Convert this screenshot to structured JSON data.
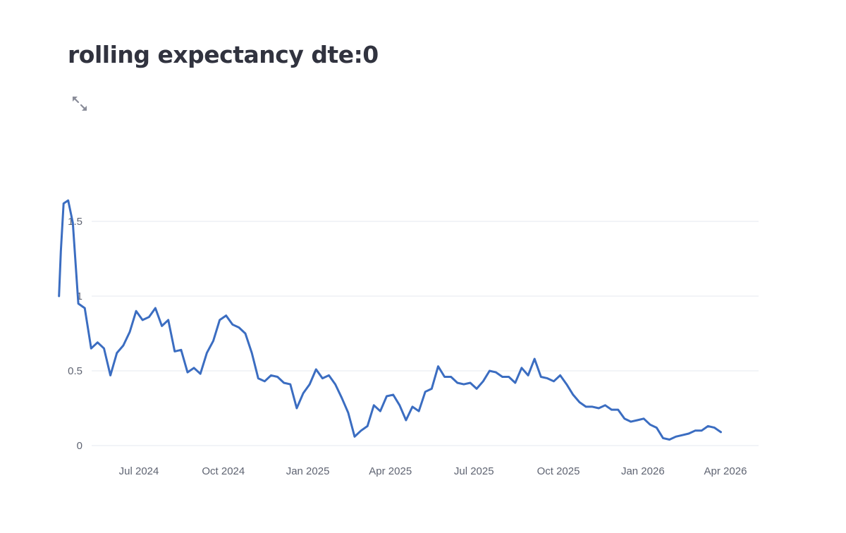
{
  "page": {
    "title": "rolling expectancy dte:0"
  },
  "toolbar": {
    "fullscreen_icon": "fullscreen-expand-icon"
  },
  "colors": {
    "line": "#3b6dc1",
    "grid": "#e6e9ef",
    "tick_text": "#5f6472",
    "title_text": "#31333f",
    "icon": "#8a8d99"
  },
  "chart_data": {
    "type": "line",
    "title": "rolling expectancy dte:0",
    "xlabel": "",
    "ylabel": "",
    "ylim": [
      0,
      1.5
    ],
    "grid": true,
    "legend": "none",
    "y_ticks": [
      {
        "value": 0,
        "label": "0"
      },
      {
        "value": 0.5,
        "label": "0.5"
      },
      {
        "value": 1,
        "label": "1"
      },
      {
        "value": 1.5,
        "label": "1.5"
      }
    ],
    "x_ticks": [
      {
        "date": "2024-07-01",
        "label": "Jul 2024"
      },
      {
        "date": "2024-10-01",
        "label": "Oct 2024"
      },
      {
        "date": "2025-01-01",
        "label": "Jan 2025"
      },
      {
        "date": "2025-04-01",
        "label": "Apr 2025"
      },
      {
        "date": "2025-07-01",
        "label": "Jul 2025"
      },
      {
        "date": "2025-10-01",
        "label": "Oct 2025"
      },
      {
        "date": "2026-01-01",
        "label": "Jan 2026"
      },
      {
        "date": "2026-04-01",
        "label": "Apr 2026"
      }
    ],
    "series": [
      {
        "points": [
          [
            "2024-04-05",
            1.0
          ],
          [
            "2024-04-07",
            1.3
          ],
          [
            "2024-04-10",
            1.62
          ],
          [
            "2024-04-15",
            1.64
          ],
          [
            "2024-04-20",
            1.49
          ],
          [
            "2024-04-26",
            0.95
          ],
          [
            "2024-05-03",
            0.92
          ],
          [
            "2024-05-10",
            0.65
          ],
          [
            "2024-05-17",
            0.69
          ],
          [
            "2024-05-24",
            0.65
          ],
          [
            "2024-05-31",
            0.47
          ],
          [
            "2024-06-07",
            0.62
          ],
          [
            "2024-06-14",
            0.67
          ],
          [
            "2024-06-21",
            0.76
          ],
          [
            "2024-06-28",
            0.9
          ],
          [
            "2024-07-05",
            0.84
          ],
          [
            "2024-07-12",
            0.86
          ],
          [
            "2024-07-19",
            0.92
          ],
          [
            "2024-07-26",
            0.8
          ],
          [
            "2024-08-02",
            0.84
          ],
          [
            "2024-08-09",
            0.63
          ],
          [
            "2024-08-16",
            0.64
          ],
          [
            "2024-08-23",
            0.49
          ],
          [
            "2024-08-30",
            0.52
          ],
          [
            "2024-09-06",
            0.48
          ],
          [
            "2024-09-13",
            0.62
          ],
          [
            "2024-09-20",
            0.7
          ],
          [
            "2024-09-27",
            0.84
          ],
          [
            "2024-10-04",
            0.87
          ],
          [
            "2024-10-11",
            0.81
          ],
          [
            "2024-10-18",
            0.79
          ],
          [
            "2024-10-25",
            0.75
          ],
          [
            "2024-11-01",
            0.62
          ],
          [
            "2024-11-08",
            0.45
          ],
          [
            "2024-11-15",
            0.43
          ],
          [
            "2024-11-22",
            0.47
          ],
          [
            "2024-11-29",
            0.46
          ],
          [
            "2024-12-06",
            0.42
          ],
          [
            "2024-12-13",
            0.41
          ],
          [
            "2024-12-20",
            0.25
          ],
          [
            "2024-12-27",
            0.35
          ],
          [
            "2025-01-03",
            0.41
          ],
          [
            "2025-01-10",
            0.51
          ],
          [
            "2025-01-17",
            0.45
          ],
          [
            "2025-01-24",
            0.47
          ],
          [
            "2025-01-31",
            0.41
          ],
          [
            "2025-02-07",
            0.32
          ],
          [
            "2025-02-14",
            0.22
          ],
          [
            "2025-02-21",
            0.06
          ],
          [
            "2025-02-28",
            0.1
          ],
          [
            "2025-03-07",
            0.13
          ],
          [
            "2025-03-14",
            0.27
          ],
          [
            "2025-03-21",
            0.23
          ],
          [
            "2025-03-28",
            0.33
          ],
          [
            "2025-04-04",
            0.34
          ],
          [
            "2025-04-11",
            0.27
          ],
          [
            "2025-04-18",
            0.17
          ],
          [
            "2025-04-25",
            0.26
          ],
          [
            "2025-05-02",
            0.23
          ],
          [
            "2025-05-09",
            0.36
          ],
          [
            "2025-05-16",
            0.38
          ],
          [
            "2025-05-23",
            0.53
          ],
          [
            "2025-05-30",
            0.46
          ],
          [
            "2025-06-06",
            0.46
          ],
          [
            "2025-06-13",
            0.42
          ],
          [
            "2025-06-20",
            0.41
          ],
          [
            "2025-06-27",
            0.42
          ],
          [
            "2025-07-04",
            0.38
          ],
          [
            "2025-07-11",
            0.43
          ],
          [
            "2025-07-18",
            0.5
          ],
          [
            "2025-07-25",
            0.49
          ],
          [
            "2025-08-01",
            0.46
          ],
          [
            "2025-08-08",
            0.46
          ],
          [
            "2025-08-15",
            0.42
          ],
          [
            "2025-08-22",
            0.52
          ],
          [
            "2025-08-29",
            0.47
          ],
          [
            "2025-09-05",
            0.58
          ],
          [
            "2025-09-12",
            0.46
          ],
          [
            "2025-09-19",
            0.45
          ],
          [
            "2025-09-26",
            0.43
          ],
          [
            "2025-10-03",
            0.47
          ],
          [
            "2025-10-10",
            0.41
          ],
          [
            "2025-10-17",
            0.34
          ],
          [
            "2025-10-24",
            0.29
          ],
          [
            "2025-10-31",
            0.26
          ],
          [
            "2025-11-07",
            0.26
          ],
          [
            "2025-11-14",
            0.25
          ],
          [
            "2025-11-21",
            0.27
          ],
          [
            "2025-11-28",
            0.24
          ],
          [
            "2025-12-05",
            0.24
          ],
          [
            "2025-12-12",
            0.18
          ],
          [
            "2025-12-19",
            0.16
          ],
          [
            "2025-12-26",
            0.17
          ],
          [
            "2026-01-02",
            0.18
          ],
          [
            "2026-01-09",
            0.14
          ],
          [
            "2026-01-16",
            0.12
          ],
          [
            "2026-01-23",
            0.05
          ],
          [
            "2026-01-30",
            0.04
          ],
          [
            "2026-02-06",
            0.06
          ],
          [
            "2026-02-13",
            0.07
          ],
          [
            "2026-02-20",
            0.08
          ],
          [
            "2026-02-27",
            0.1
          ],
          [
            "2026-03-06",
            0.1
          ],
          [
            "2026-03-13",
            0.13
          ],
          [
            "2026-03-20",
            0.12
          ],
          [
            "2026-03-27",
            0.09
          ]
        ]
      }
    ]
  }
}
